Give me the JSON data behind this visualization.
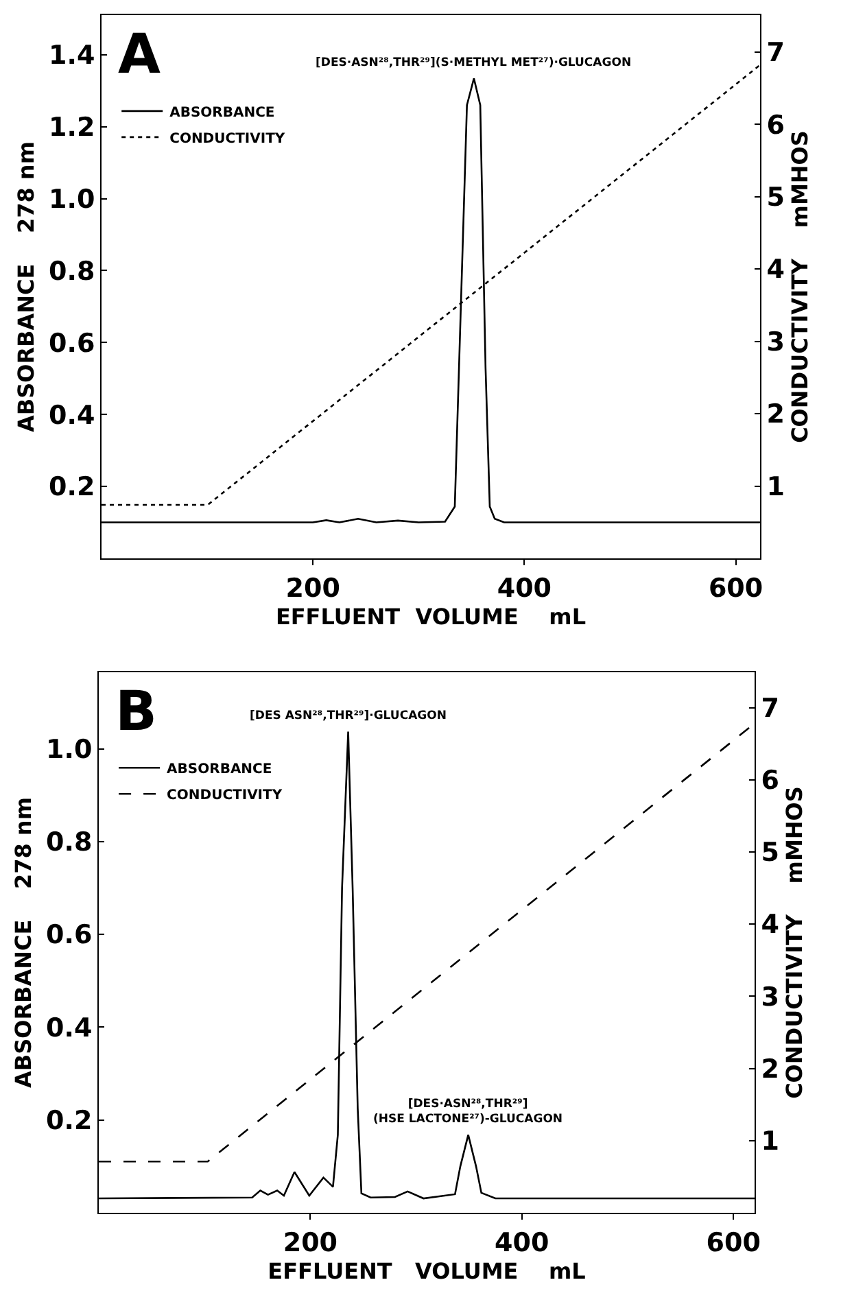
{
  "chart_data": [
    {
      "type": "line",
      "xlabel": "EFFLUENT  VOLUME    mL",
      "ylabel": "ABSORBANCE    278 nm",
      "y2label": "CONDUCTIVITY    mMHOS",
      "annotations": [
        "A",
        {
          "text": "[DES·ASN²⁸,THR²⁹](S·METHYL MET²⁷)·GLUCAGON",
          "x": 352,
          "y": 1.334
        }
      ],
      "series": [
        {
          "name": "ABSORBANCE",
          "color": "#000000",
          "line_style": "solid",
          "x": [
            0,
            200,
            212.6,
            225,
            242.7,
            260,
            280.4,
            300,
            325,
            334.2,
            338.2,
            345.7,
            352.3,
            358.3,
            363.3,
            367.3,
            372,
            380.9,
            400,
            623
          ],
          "values": [
            0.1,
            0.1,
            0.106,
            0.1,
            0.11,
            0.1,
            0.105,
            0.1,
            0.102,
            0.144,
            0.53,
            1.26,
            1.334,
            1.26,
            0.53,
            0.144,
            0.11,
            0.1,
            0.1,
            0.1
          ]
        },
        {
          "name": "CONDUCTIVITY",
          "color": "#000000",
          "line_style": "dotted",
          "axis": "y2",
          "x": [
            0,
            100.5,
            623
          ],
          "values": [
            0.74,
            0.74,
            6.82
          ]
        }
      ],
      "xlim": [
        0,
        623
      ],
      "xticks": [
        200,
        400,
        600
      ],
      "ylim": [
        0,
        1.51
      ],
      "yticks": [
        0.2,
        0.4,
        0.6,
        0.8,
        {
          "value": 1,
          "label": "1.0"
        },
        1.2,
        1.4
      ],
      "y2lim": [
        0,
        7.51
      ],
      "y2ticks": [
        1,
        2,
        3,
        4,
        5,
        6,
        7
      ],
      "legend": "top left",
      "grid": false
    },
    {
      "type": "line",
      "xlabel": "EFFLUENT   VOLUME    mL",
      "ylabel": "ABSORBANCE    278 nm",
      "y2label": "CONDUCTIVITY    mMHOS",
      "annotations": [
        "B",
        {
          "text": "[DES ASN²⁸,THR²⁹]·GLUCAGON",
          "x": 235.8,
          "y": 1.037
        },
        {
          "text": "[DES·ASN²⁸,THR²⁹]\n(HSE LACTONE²⁷)-GLUCAGON",
          "x": 349.3,
          "y": 0.168
        }
      ],
      "series": [
        {
          "name": "ABSORBANCE",
          "color": "#000000",
          "line_style": "solid",
          "x": [
            0,
            145,
            152.7,
            160,
            168.7,
            175,
            185,
            199,
            212.4,
            221.4,
            226,
            230,
            235.8,
            240,
            244.8,
            248.3,
            257,
            280,
            292,
            307,
            336.8,
            341.8,
            349.3,
            356.7,
            361.7,
            375,
            620
          ],
          "values": [
            0.031,
            0.033,
            0.048,
            0.039,
            0.048,
            0.037,
            0.088,
            0.037,
            0.076,
            0.056,
            0.168,
            0.7,
            1.037,
            0.7,
            0.225,
            0.042,
            0.033,
            0.034,
            0.046,
            0.031,
            0.04,
            0.1,
            0.168,
            0.1,
            0.043,
            0.031,
            0.031
          ]
        },
        {
          "name": "CONDUCTIVITY",
          "color": "#000000",
          "line_style": "dashed",
          "axis": "y2",
          "x": [
            0,
            103,
            620
          ],
          "values": [
            0.71,
            0.71,
            6.78
          ]
        }
      ],
      "xlim": [
        0,
        620
      ],
      "xticks": [
        200,
        400,
        600
      ],
      "ylim": [
        0,
        1.165
      ],
      "yticks": [
        0.2,
        0.4,
        0.6,
        0.8,
        {
          "value": 1,
          "label": "1.0"
        }
      ],
      "y2lim": [
        0,
        7.49
      ],
      "y2ticks": [
        1,
        2,
        3,
        4,
        5,
        6,
        7
      ],
      "legend": "top left",
      "grid": false
    }
  ]
}
